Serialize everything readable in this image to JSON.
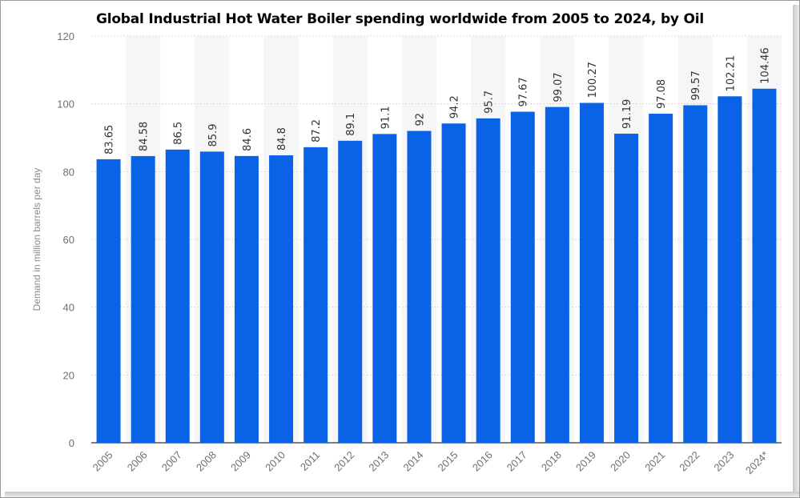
{
  "chart_data": {
    "type": "bar",
    "title": "Global Industrial Hot Water Boiler spending worldwide from 2005 to 2024, by Oil",
    "ylabel": "Demand in million barrels per day",
    "xlabel": "",
    "ylim": [
      0,
      120
    ],
    "yticks": [
      "0",
      "20",
      "40",
      "60",
      "80",
      "100",
      "120"
    ],
    "grid": true,
    "categories": [
      "2005",
      "2006",
      "2007",
      "2008",
      "2009",
      "2010",
      "2011",
      "2012",
      "2013",
      "2014",
      "2015",
      "2016",
      "2017",
      "2018",
      "2019",
      "2020",
      "2021",
      "2022",
      "2023",
      "2024*"
    ],
    "values": [
      83.65,
      84.58,
      86.5,
      85.9,
      84.6,
      84.8,
      87.2,
      89.1,
      91.1,
      92,
      94.2,
      95.7,
      97.67,
      99.07,
      100.27,
      91.19,
      97.08,
      99.57,
      102.21,
      104.46
    ],
    "value_labels": [
      "83.65",
      "84.58",
      "86.5",
      "85.9",
      "84.6",
      "84.8",
      "87.2",
      "89.1",
      "91.1",
      "92",
      "94.2",
      "95.7",
      "97.67",
      "99.07",
      "100.27",
      "91.19",
      "97.08",
      "99.57",
      "102.21",
      "104.46"
    ],
    "bar_color": "#0a63e6",
    "band_color": "#f6f6f6"
  }
}
